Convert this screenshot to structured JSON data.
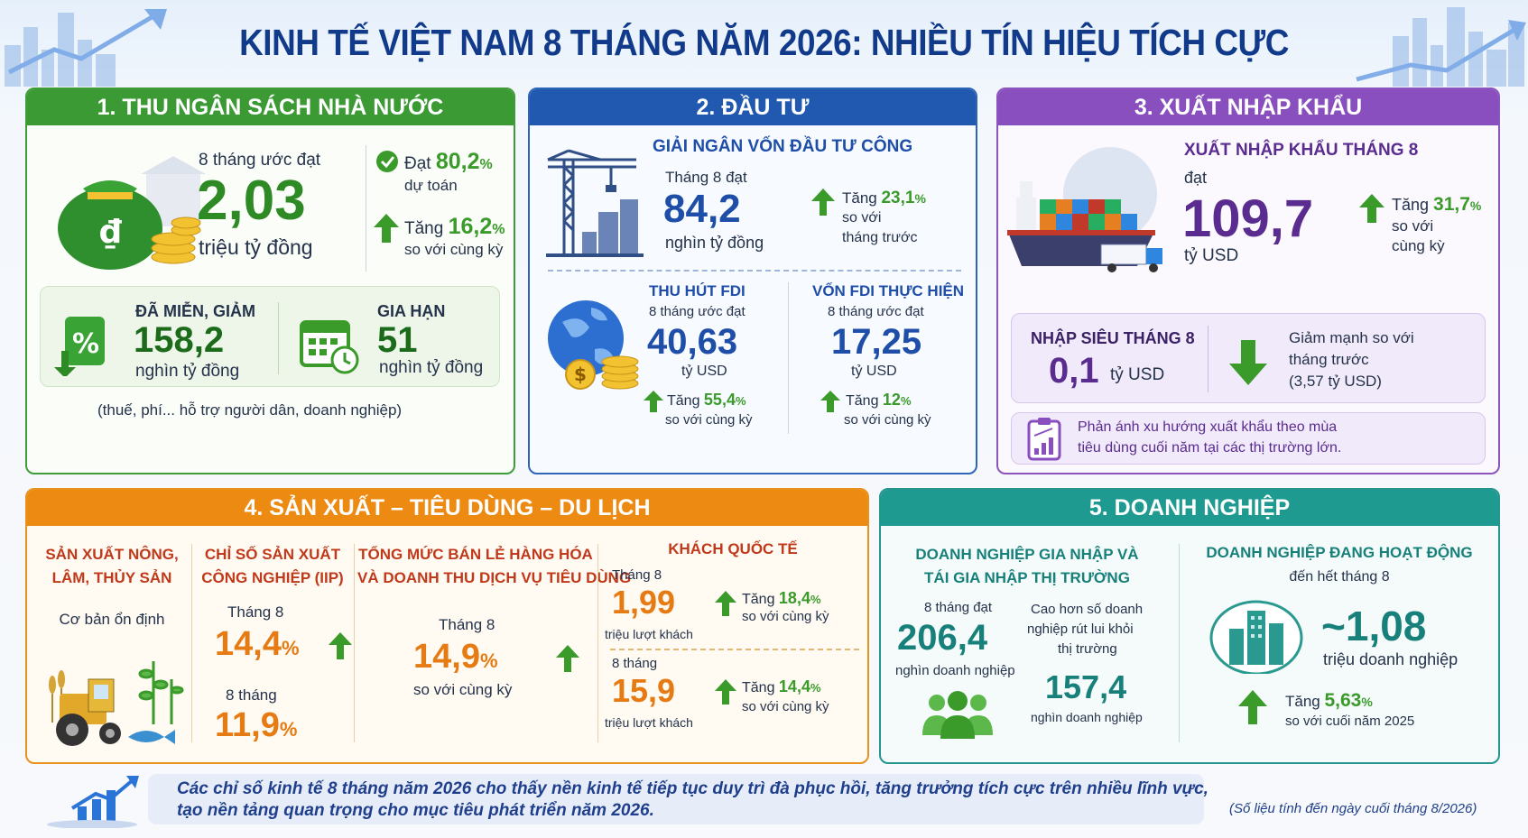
{
  "title": "KINH TẾ VIỆT NAM 8 THÁNG NĂM 2026: NHIỀU TÍN HIỆU TÍCH CỰC",
  "colors": {
    "title": "#123a8a",
    "green": "#3a9a2a",
    "blue": "#1f4ea8",
    "purple": "#5a2c8f",
    "orange": "#e57b12",
    "teal": "#18807a"
  },
  "s1": {
    "header": "1. THU NGÂN SÁCH NHÀ NƯỚC",
    "lead": "8 tháng ước đạt",
    "value": "2,03",
    "unit": "triệu tỷ đồng",
    "r1_pre": "Đạt",
    "r1_val": "80,2",
    "r1_pct": "%",
    "r1_sub": "dự toán",
    "r2_pre": "Tăng",
    "r2_val": "16,2",
    "r2_pct": "%",
    "r2_sub": "so với cùng kỳ",
    "mg_label": "ĐÃ MIỄN, GIẢM",
    "mg_val": "158,2",
    "mg_unit": "nghìn tỷ đồng",
    "gh_label": "GIA HẠN",
    "gh_val": "51",
    "gh_unit": "nghìn tỷ đồng",
    "note": "(thuế, phí... hỗ trợ người dân, doanh nghiệp)",
    "icons": [
      "money-bag-icon",
      "bank-icon",
      "coins-icon",
      "percent-down-icon",
      "calendar-clock-icon"
    ]
  },
  "s2": {
    "header": "2. ĐẦU TƯ",
    "pub_title": "GIẢI NGÂN VỐN ĐẦU TƯ CÔNG",
    "pub_lead": "Tháng 8 đạt",
    "pub_val": "84,2",
    "pub_unit": "nghìn tỷ đồng",
    "pub_pre": "Tăng",
    "pub_pct_val": "23,1",
    "pub_pct": "%",
    "pub_s1": "so với",
    "pub_s2": "tháng trước",
    "fdi1_title": "THU HÚT FDI",
    "fdi1_lead": "8 tháng ước đạt",
    "fdi1_val": "40,63",
    "fdi1_unit": "tỷ USD",
    "fdi1_pre": "Tăng",
    "fdi1_pct_val": "55,4",
    "fdi1_pct": "%",
    "fdi1_sub": "so với cùng kỳ",
    "fdi2_title": "VỐN FDI THỰC HIỆN",
    "fdi2_lead": "8 tháng ước đạt",
    "fdi2_val": "17,25",
    "fdi2_unit": "tỷ USD",
    "fdi2_pre": "Tăng",
    "fdi2_pct_val": "12",
    "fdi2_pct": "%",
    "fdi2_sub": "so với cùng kỳ"
  },
  "s3": {
    "header": "3. XUẤT NHẬP KHẨU",
    "title": "XUẤT NHẬP KHẨU THÁNG 8",
    "lead": "đạt",
    "value": "109,7",
    "unit": "tỷ USD",
    "pre": "Tăng",
    "pct_val": "31,7",
    "pct": "%",
    "s1": "so với",
    "s2": "cùng kỳ",
    "ns_title": "NHẬP SIÊU THÁNG 8",
    "ns_val": "0,1",
    "ns_unit": "tỷ USD",
    "ns_d1": "Giảm mạnh so với",
    "ns_d2": "tháng trước",
    "ns_d3": "(3,57 tỷ USD)",
    "note1": "Phản ánh xu hướng xuất khẩu theo mùa",
    "note2": "tiêu dùng cuối năm tại các thị trường lớn."
  },
  "s4": {
    "header": "4. SẢN XUẤT – TIÊU DÙNG – DU LỊCH",
    "agri_t1": "SẢN XUẤT NÔNG,",
    "agri_t2": "LÂM, THỦY SẢN",
    "agri_desc": "Cơ bản ổn định",
    "iip_t1": "CHỈ SỐ SẢN XUẤT",
    "iip_t2": "CÔNG NGHIỆP (IIP)",
    "iip_m": "Tháng 8",
    "iip_mv": "14,4",
    "iip_8": "8 tháng",
    "iip_8v": "11,9",
    "pct": "%",
    "ret_t1": "TỔNG MỨC BÁN LẺ HÀNG HÓA",
    "ret_t2": "VÀ DOANH THU DỊCH VỤ TIÊU DÙNG",
    "ret_m": "Tháng 8",
    "ret_v": "14,9",
    "ret_sub": "so với cùng kỳ",
    "tour_t": "KHÁCH QUỐC TẾ",
    "tour_m": "Tháng 8",
    "tour_mv": "1,99",
    "tour_unit": "triệu lượt khách",
    "tour_m_pre": "Tăng",
    "tour_m_pct": "18,4",
    "tour_8": "8 tháng",
    "tour_8v": "15,9",
    "tour_8_pre": "Tăng",
    "tour_8_pct": "14,4",
    "tour_sub": "so với cùng kỳ"
  },
  "s5": {
    "header": "5. DOANH NGHIỆP",
    "new_t1": "DOANH NGHIỆP GIA NHẬP VÀ",
    "new_t2": "TÁI GIA NHẬP THỊ TRƯỜNG",
    "new_lead": "8 tháng đạt",
    "new_val": "206,4",
    "new_unit": "nghìn doanh nghiệp",
    "cmp1": "Cao hơn số doanh",
    "cmp2": "nghiệp rút lui khỏi",
    "cmp3": "thị trường",
    "cmp_val": "157,4",
    "cmp_unit": "nghìn doanh nghiệp",
    "act_t": "DOANH NGHIỆP ĐANG HOẠT ĐỘNG",
    "act_sub": "đến hết tháng 8",
    "act_val": "~1,08",
    "act_unit": "triệu doanh nghiệp",
    "act_pre": "Tăng",
    "act_pct_val": "5,63",
    "act_pct": "%",
    "act_cmp": "so với cuối năm 2025"
  },
  "footer": {
    "l1": "Các chỉ số kinh tế 8 tháng năm 2026 cho thấy nền kinh tế tiếp tục duy trì đà phục hồi, tăng trưởng tích cực trên nhiều lĩnh vực,",
    "l2": "tạo nền tảng quan trọng cho mục tiêu phát triển năm 2026.",
    "source": "(Số liệu tính đến ngày cuối tháng 8/2026)"
  }
}
